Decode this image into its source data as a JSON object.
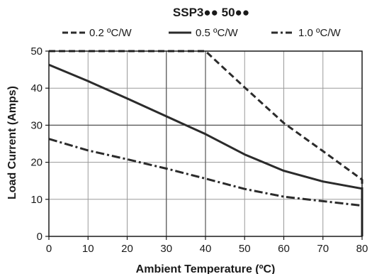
{
  "chart_data": {
    "type": "line",
    "title": "SSP3●● 50●●",
    "xlabel": "Ambient Temperature (ºC)",
    "ylabel": "Load Current (Amps)",
    "xlim": [
      0,
      80
    ],
    "ylim": [
      0,
      50
    ],
    "xticks": [
      0,
      10,
      20,
      30,
      40,
      50,
      60,
      70,
      80
    ],
    "yticks": [
      0,
      10,
      20,
      30,
      40,
      50
    ],
    "grid": true,
    "legend_position": "top",
    "series": [
      {
        "name": "0.2 ºC/W",
        "style": "dashed",
        "x": [
          0,
          40,
          50,
          60,
          70,
          80,
          80
        ],
        "y": [
          50,
          50,
          40.2,
          30.6,
          23,
          15.3,
          0
        ]
      },
      {
        "name": "0.5 ºC/W",
        "style": "solid",
        "x": [
          0,
          10,
          20,
          30,
          40,
          50,
          60,
          70,
          80,
          80
        ],
        "y": [
          46.3,
          41.9,
          37.2,
          32.4,
          27.6,
          22.1,
          17.7,
          14.8,
          12.9,
          0
        ]
      },
      {
        "name": "1.0 ºC/W",
        "style": "dash-dot",
        "x": [
          0,
          10,
          20,
          30,
          40,
          50,
          60,
          70,
          80,
          80
        ],
        "y": [
          26.3,
          23.2,
          20.8,
          18.3,
          15.6,
          12.8,
          10.7,
          9.5,
          8.3,
          0
        ]
      }
    ]
  },
  "colors": {
    "line": "#2b2b2b",
    "grid": "#9a9a9a",
    "axis": "#1a1a1a"
  }
}
